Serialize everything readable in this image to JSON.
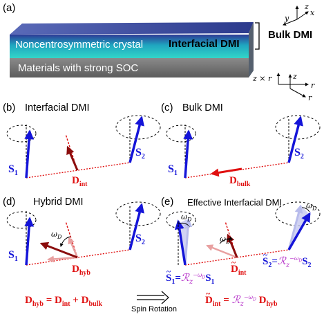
{
  "panels": {
    "a": "(a)",
    "b": "(b)",
    "c": "(c)",
    "d": "(d)",
    "e": "(e)"
  },
  "slab": {
    "top_layer": "Noncentrosymmetric crystal",
    "interfacial_label": "Interfacial DMI",
    "bottom_layer": "Materials with strong SOC",
    "bulk_label": "Bulk DMI"
  },
  "axes_top": {
    "x": "x",
    "y": "y",
    "z": "z"
  },
  "axes_right": {
    "zr": "z × r",
    "z": "z",
    "r": "r"
  },
  "titles": {
    "b": "Interfacial DMI",
    "c": "Bulk DMI",
    "d": "Hybrid DMI",
    "e": "Effective Interfacial DMI"
  },
  "spin_labels": {
    "base": "S",
    "one": "1",
    "two": "2"
  },
  "dmi_labels": {
    "base": "D",
    "int": "int",
    "bulk": "bulk",
    "hyb": "hyb"
  },
  "omega": {
    "base": "ω",
    "sub": "D"
  },
  "rotation": {
    "R": "ℛ",
    "sub": "z",
    "sup": "−ω",
    "supsub": "D"
  },
  "equation_left": {
    "eq": "=",
    "plus": "+"
  },
  "spin_rotation_label": "Spin Rotation",
  "colors": {
    "spin_blue": "#1414d8",
    "dmi_red": "#e01010",
    "dark_red": "#8b0d0d",
    "teal": "#20c0c0",
    "slab_blue": "#3b4aa0",
    "slab_gray": "#7a7a7a",
    "rotation_purple": "#b530c8"
  }
}
